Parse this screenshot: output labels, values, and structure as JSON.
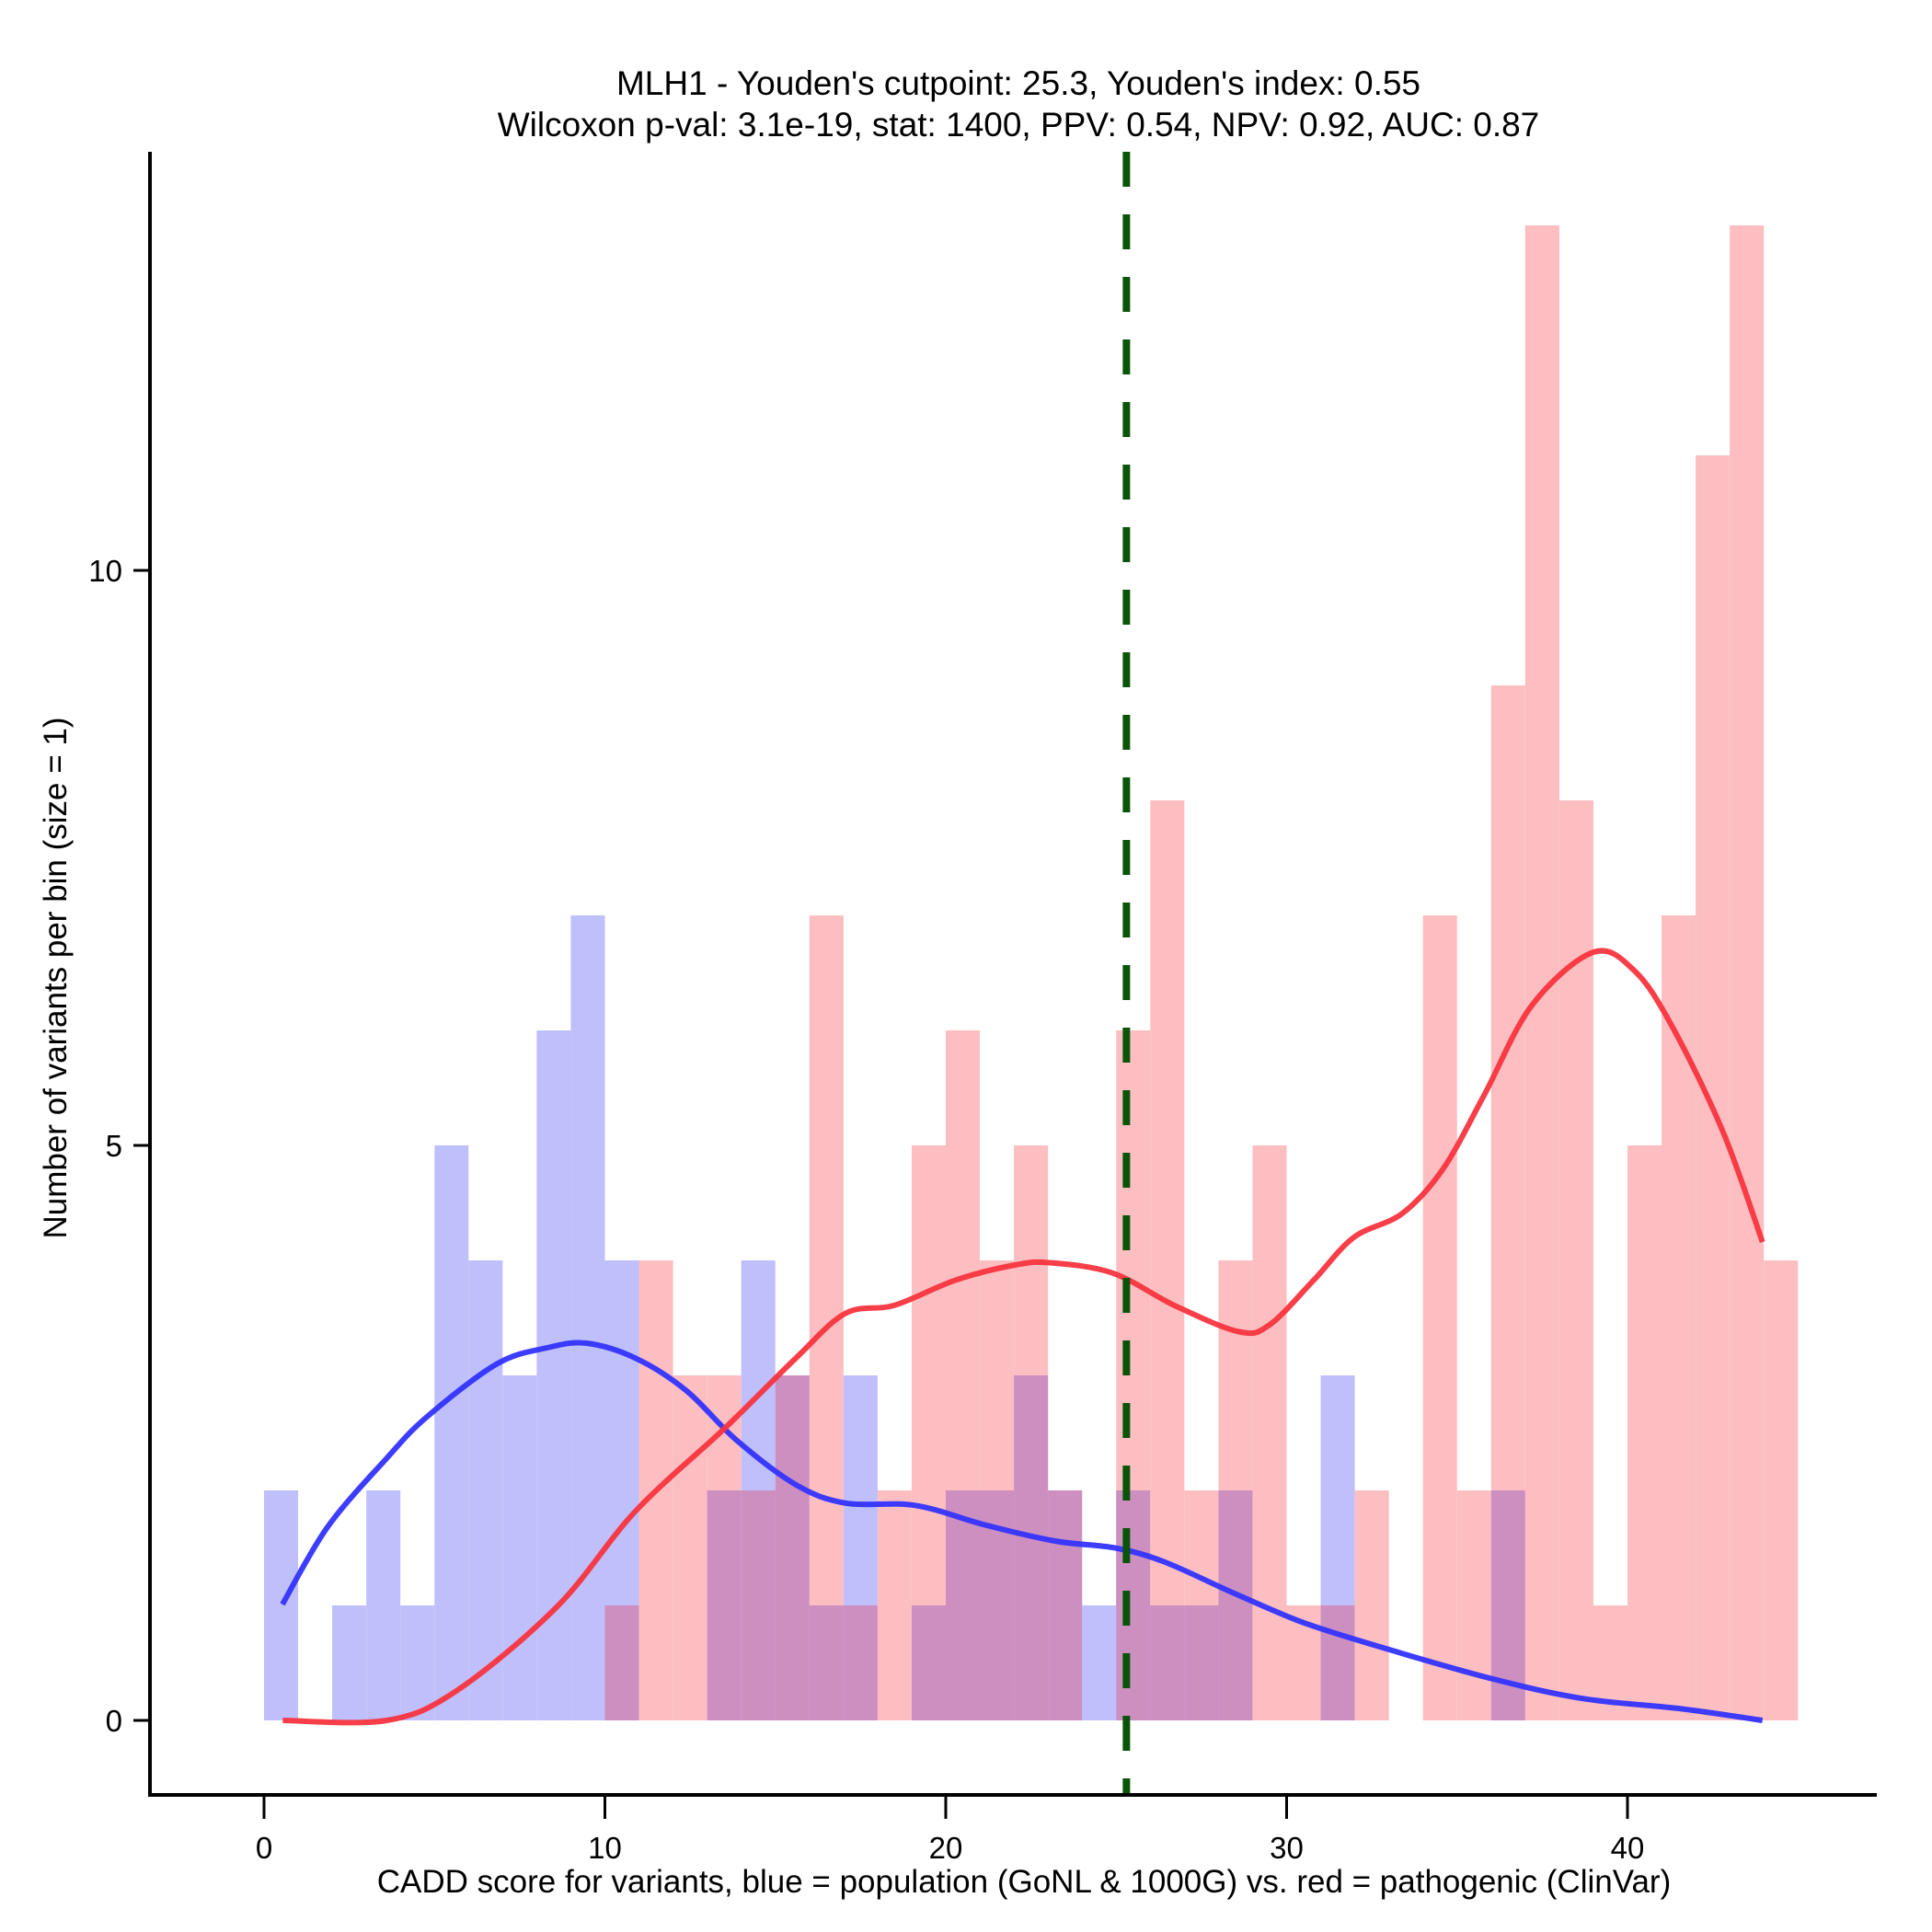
{
  "chart_data": {
    "type": "bar",
    "title": "MLH1 - Youden's cutpoint: 25.3, Youden's index: 0.55",
    "subtitle": "Wilcoxon p-val: 3.1e-19, stat: 1400, PPV: 0.54, NPV: 0.92, AUC: 0.87",
    "xlabel": "CADD score for variants, blue = population (GoNL & 1000G) vs. red = pathogenic (ClinVar)",
    "ylabel": "Number of variants per bin (size = 1)",
    "xlim": [
      -3.3,
      47
    ],
    "ylim": [
      -0.65,
      13.85
    ],
    "x_ticks": [
      0,
      10,
      20,
      30,
      40
    ],
    "x_tick_labels": [
      "0",
      "10",
      "20",
      "30",
      "40"
    ],
    "y_ticks": [
      0,
      5,
      10
    ],
    "y_tick_labels": [
      "0",
      "5",
      "10"
    ],
    "grid": false,
    "legend": "none",
    "bin_size": 1,
    "bin_start": 0,
    "series": [
      {
        "name": "population (GoNL & 1000G)",
        "kind": "histogram",
        "color": "#BFBFFC",
        "values": [
          2,
          0,
          1,
          2,
          1,
          5,
          4,
          3,
          6,
          7,
          4,
          0,
          0,
          2,
          4,
          3,
          1,
          3,
          0,
          1,
          2,
          2,
          3,
          2,
          1,
          2,
          1,
          1,
          2,
          0,
          0,
          3,
          0,
          0,
          0,
          0,
          2,
          0,
          0,
          0,
          0,
          0,
          0,
          0,
          0
        ]
      },
      {
        "name": "pathogenic (ClinVar)",
        "kind": "histogram",
        "color": "#FDBEC1",
        "values": [
          0,
          0,
          0,
          0,
          0,
          0,
          0,
          0,
          0,
          0,
          1,
          4,
          3,
          3,
          2,
          3,
          7,
          1,
          2,
          5,
          6,
          4,
          5,
          2,
          0,
          6,
          8,
          2,
          4,
          5,
          1,
          1,
          2,
          0,
          7,
          2,
          9,
          13,
          8,
          1,
          5,
          7,
          11,
          13,
          4
        ]
      },
      {
        "name": "population density (scaled)",
        "kind": "line",
        "color": "#3333FF",
        "x": [
          0.54,
          1.86,
          3.6,
          4.78,
          6.83,
          8.3,
          9.46,
          10.9,
          12.38,
          13.85,
          15.6,
          17.06,
          19.1,
          21.15,
          23.2,
          24.96,
          26.4,
          28.5,
          30.5,
          32.85,
          36.06,
          38.7,
          41.6,
          43.96
        ],
        "y": [
          1.01,
          1.68,
          2.28,
          2.64,
          3.1,
          3.24,
          3.28,
          3.15,
          2.87,
          2.44,
          2.05,
          1.89,
          1.87,
          1.7,
          1.56,
          1.5,
          1.38,
          1.1,
          0.85,
          0.63,
          0.36,
          0.19,
          0.1,
          0.0
        ]
      },
      {
        "name": "pathogenic density (scaled)",
        "kind": "line",
        "color": "#F8343E",
        "x": [
          0.55,
          3.6,
          5.66,
          8.6,
          10.9,
          13.55,
          15.6,
          17.06,
          18.5,
          20.3,
          22.03,
          23.05,
          24.9,
          26.7,
          28.6,
          29.5,
          30.8,
          31.97,
          33.4,
          34.6,
          35.8,
          37.2,
          39.0,
          40.2,
          41.3,
          42.8,
          43.96
        ],
        "y": [
          0,
          0,
          0.26,
          0.99,
          1.82,
          2.55,
          3.15,
          3.54,
          3.61,
          3.83,
          3.96,
          3.98,
          3.89,
          3.61,
          3.38,
          3.44,
          3.83,
          4.2,
          4.41,
          4.8,
          5.44,
          6.22,
          6.68,
          6.52,
          6.04,
          5.12,
          4.16
        ]
      }
    ],
    "annotations": [
      {
        "type": "vline",
        "label": "Youden's cutpoint",
        "x": 25.3,
        "style": "dashed",
        "color": "#0A540A"
      }
    ],
    "overlap_color": "#CC8FC0"
  }
}
